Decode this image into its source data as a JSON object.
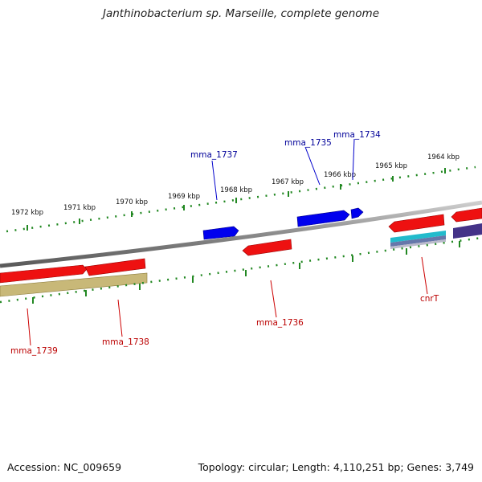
{
  "title": "Janthinobacterium sp. Marseille, complete genome",
  "footer": {
    "accession": "Accession: NC_009659",
    "summary": "Topology: circular; Length: 4,110,251 bp; Genes: 3,749"
  },
  "scale_labels": [
    "1972 kbp",
    "1971 kbp",
    "1970 kbp",
    "1969 kbp",
    "1968 kbp",
    "1967 kbp",
    "1966 kbp",
    "1965 kbp",
    "1964 kbp"
  ],
  "genes": {
    "mma_1737": "mma_1737",
    "mma_1735": "mma_1735",
    "mma_1734": "mma_1734",
    "mma_1739": "mma_1739",
    "mma_1738": "mma_1738",
    "mma_1736": "mma_1736",
    "cnrT": "cnrT"
  },
  "colors": {
    "forward_gene": "#0000ee",
    "reverse_gene": "#ee0000",
    "forward_label": "#000099",
    "reverse_label": "#bb0000",
    "ticks": "#228822",
    "backbone": "#888888"
  }
}
